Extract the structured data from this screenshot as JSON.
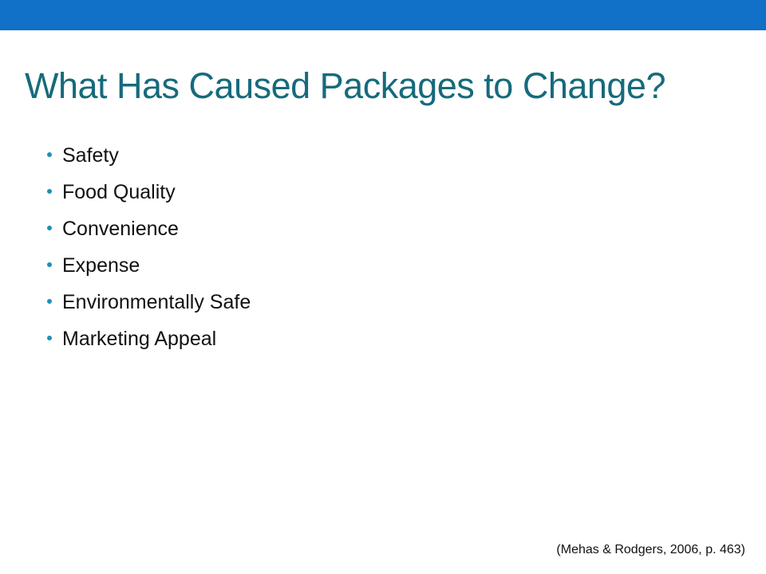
{
  "slide": {
    "title": "What Has Caused Packages to Change?",
    "bullets": [
      {
        "label": "Safety"
      },
      {
        "label": "Food Quality"
      },
      {
        "label": "Convenience"
      },
      {
        "label": "Expense"
      },
      {
        "label": "Environmentally Safe"
      },
      {
        "label": "Marketing Appeal"
      }
    ],
    "citation": "(Mehas & Rodgers, 2006, p. 463)"
  },
  "colors": {
    "top_bar": "#1170C8",
    "title": "#176A7C",
    "bullet_dot": "#1F8FB7",
    "body_text": "#111111"
  }
}
